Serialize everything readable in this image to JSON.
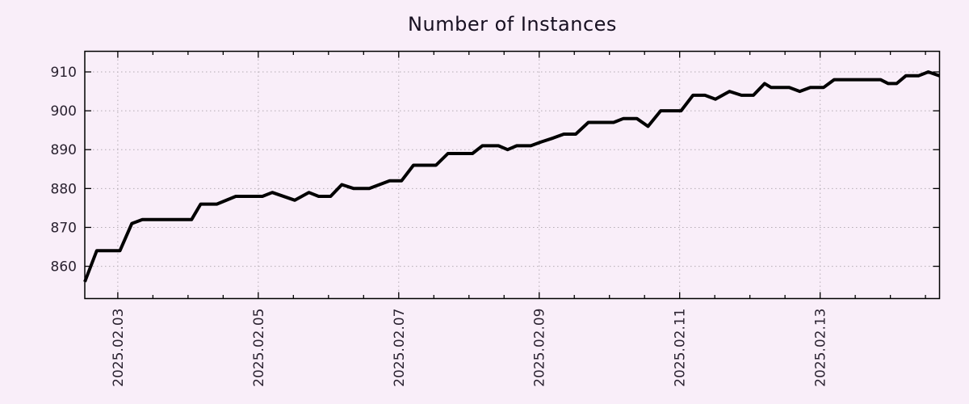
{
  "title": "Number of Instances",
  "colors": {
    "background": "#f9eef9",
    "axis": "#000000",
    "grid": "#b4acb4",
    "text": "#2a2230",
    "line": "#000000"
  },
  "chart_data": {
    "type": "line",
    "title": "Number of Instances",
    "xlabel": "",
    "ylabel": "",
    "legend": "none",
    "grid": "dotted",
    "x_axis": {
      "unit": "date",
      "tick_labels": [
        "2025.02.03",
        "2025.02.05",
        "2025.02.07",
        "2025.02.09",
        "2025.02.11",
        "2025.02.13"
      ],
      "tick_positions_days": [
        0,
        2,
        4,
        6,
        8,
        10
      ],
      "minor_tick_step_days": 0.5,
      "range_days": [
        -0.47,
        11.7
      ]
    },
    "y_axis": {
      "tick_values": [
        860,
        870,
        880,
        890,
        900,
        910
      ],
      "range": [
        851.7,
        915.3
      ]
    },
    "series": [
      {
        "color": "#000000",
        "points": [
          [
            -0.47,
            856
          ],
          [
            -0.3,
            864
          ],
          [
            0.03,
            864
          ],
          [
            0.2,
            871
          ],
          [
            0.35,
            872
          ],
          [
            1.05,
            872
          ],
          [
            1.18,
            876
          ],
          [
            1.41,
            876
          ],
          [
            1.68,
            878
          ],
          [
            2.06,
            878
          ],
          [
            2.2,
            879
          ],
          [
            2.52,
            877
          ],
          [
            2.72,
            879
          ],
          [
            2.86,
            878
          ],
          [
            3.03,
            878
          ],
          [
            3.19,
            881
          ],
          [
            3.36,
            880
          ],
          [
            3.58,
            880
          ],
          [
            3.87,
            882
          ],
          [
            4.04,
            882
          ],
          [
            4.21,
            886
          ],
          [
            4.53,
            886
          ],
          [
            4.7,
            889
          ],
          [
            5.05,
            889
          ],
          [
            5.19,
            891
          ],
          [
            5.42,
            891
          ],
          [
            5.55,
            890
          ],
          [
            5.68,
            891
          ],
          [
            5.88,
            891
          ],
          [
            6.03,
            892
          ],
          [
            6.2,
            893
          ],
          [
            6.35,
            894
          ],
          [
            6.52,
            894
          ],
          [
            6.7,
            897
          ],
          [
            7.06,
            897
          ],
          [
            7.2,
            898
          ],
          [
            7.39,
            898
          ],
          [
            7.55,
            896
          ],
          [
            7.73,
            900
          ],
          [
            8.02,
            900
          ],
          [
            8.19,
            904
          ],
          [
            8.36,
            904
          ],
          [
            8.51,
            903
          ],
          [
            8.71,
            905
          ],
          [
            8.88,
            904
          ],
          [
            9.05,
            904
          ],
          [
            9.21,
            907
          ],
          [
            9.3,
            906
          ],
          [
            9.56,
            906
          ],
          [
            9.71,
            905
          ],
          [
            9.86,
            906
          ],
          [
            10.05,
            906
          ],
          [
            10.2,
            908
          ],
          [
            10.86,
            908
          ],
          [
            10.97,
            907
          ],
          [
            11.09,
            907
          ],
          [
            11.22,
            909
          ],
          [
            11.4,
            909
          ],
          [
            11.54,
            910
          ],
          [
            11.7,
            909
          ]
        ]
      }
    ]
  }
}
